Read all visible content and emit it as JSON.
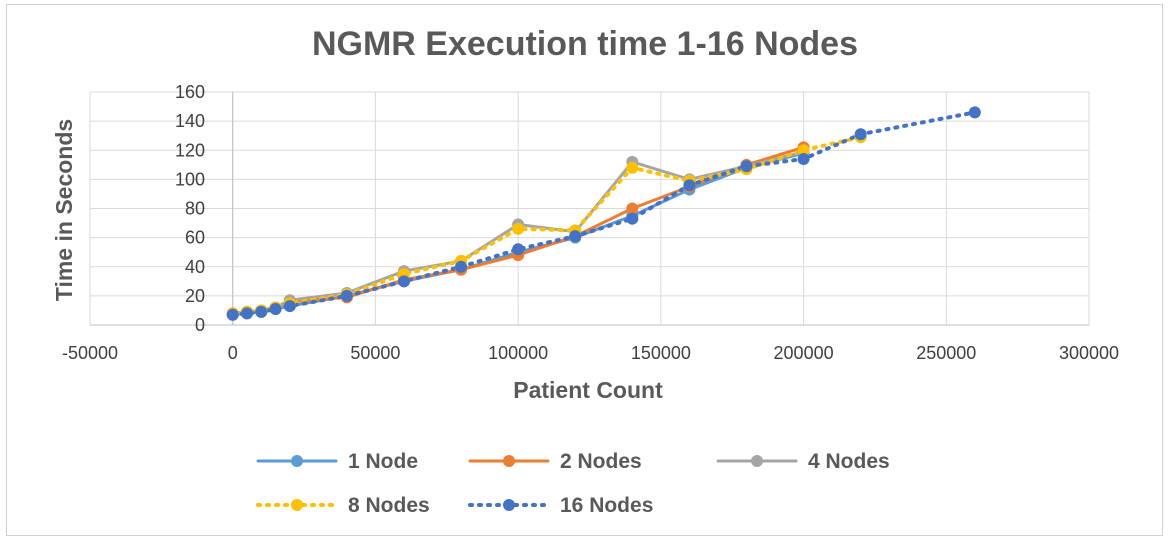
{
  "chart_data": {
    "type": "line",
    "title": "NGMR Execution time 1-16 Nodes",
    "xlabel": "Patient Count",
    "ylabel": "Time in Seconds",
    "xlim": [
      -50000,
      300000
    ],
    "ylim": [
      0,
      160
    ],
    "xticks": [
      -50000,
      0,
      50000,
      100000,
      150000,
      200000,
      250000,
      300000
    ],
    "yticks": [
      0,
      20,
      40,
      60,
      80,
      100,
      120,
      140,
      160
    ],
    "grid": true,
    "legend_position": "bottom",
    "series": [
      {
        "name": "1 Node",
        "color": "#5b9bd5",
        "line_style": "solid",
        "points": [
          [
            0,
            7
          ],
          [
            5000,
            8
          ],
          [
            10000,
            9
          ],
          [
            15000,
            11
          ],
          [
            20000,
            13
          ],
          [
            40000,
            20
          ],
          [
            60000,
            30
          ],
          [
            80000,
            38
          ],
          [
            100000,
            50
          ],
          [
            120000,
            60
          ],
          [
            140000,
            75
          ],
          [
            160000,
            93
          ],
          [
            180000,
            108
          ],
          [
            200000,
            118
          ]
        ]
      },
      {
        "name": "2 Nodes",
        "color": "#ed7d31",
        "line_style": "solid",
        "points": [
          [
            0,
            8
          ],
          [
            5000,
            9
          ],
          [
            10000,
            10
          ],
          [
            15000,
            12
          ],
          [
            20000,
            16
          ],
          [
            40000,
            19
          ],
          [
            60000,
            31
          ],
          [
            80000,
            38
          ],
          [
            100000,
            48
          ],
          [
            120000,
            61
          ],
          [
            140000,
            80
          ],
          [
            160000,
            95
          ],
          [
            180000,
            110
          ],
          [
            200000,
            122
          ]
        ]
      },
      {
        "name": "4 Nodes",
        "color": "#a5a5a5",
        "line_style": "solid",
        "points": [
          [
            0,
            8
          ],
          [
            5000,
            9
          ],
          [
            10000,
            10
          ],
          [
            15000,
            12
          ],
          [
            20000,
            17
          ],
          [
            40000,
            22
          ],
          [
            60000,
            37
          ],
          [
            80000,
            44
          ],
          [
            100000,
            69
          ],
          [
            120000,
            64
          ],
          [
            140000,
            112
          ],
          [
            160000,
            100
          ],
          [
            180000,
            109
          ],
          [
            200000,
            119
          ]
        ]
      },
      {
        "name": "8 Nodes",
        "color": "#ffc000",
        "line_style": "dotted",
        "points": [
          [
            0,
            8
          ],
          [
            5000,
            9
          ],
          [
            10000,
            10
          ],
          [
            15000,
            12
          ],
          [
            20000,
            15
          ],
          [
            40000,
            21
          ],
          [
            60000,
            35
          ],
          [
            80000,
            44
          ],
          [
            100000,
            66
          ],
          [
            120000,
            65
          ],
          [
            140000,
            108
          ],
          [
            160000,
            99
          ],
          [
            180000,
            107
          ],
          [
            200000,
            120
          ],
          [
            220000,
            129
          ]
        ]
      },
      {
        "name": "16 Nodes",
        "color": "#4472c4",
        "line_style": "dotted",
        "points": [
          [
            0,
            7
          ],
          [
            5000,
            8
          ],
          [
            10000,
            9
          ],
          [
            15000,
            11
          ],
          [
            20000,
            13
          ],
          [
            40000,
            20
          ],
          [
            60000,
            30
          ],
          [
            80000,
            40
          ],
          [
            100000,
            52
          ],
          [
            120000,
            61
          ],
          [
            140000,
            73
          ],
          [
            160000,
            96
          ],
          [
            180000,
            109
          ],
          [
            200000,
            114
          ],
          [
            220000,
            131
          ],
          [
            260000,
            146
          ]
        ]
      }
    ]
  }
}
